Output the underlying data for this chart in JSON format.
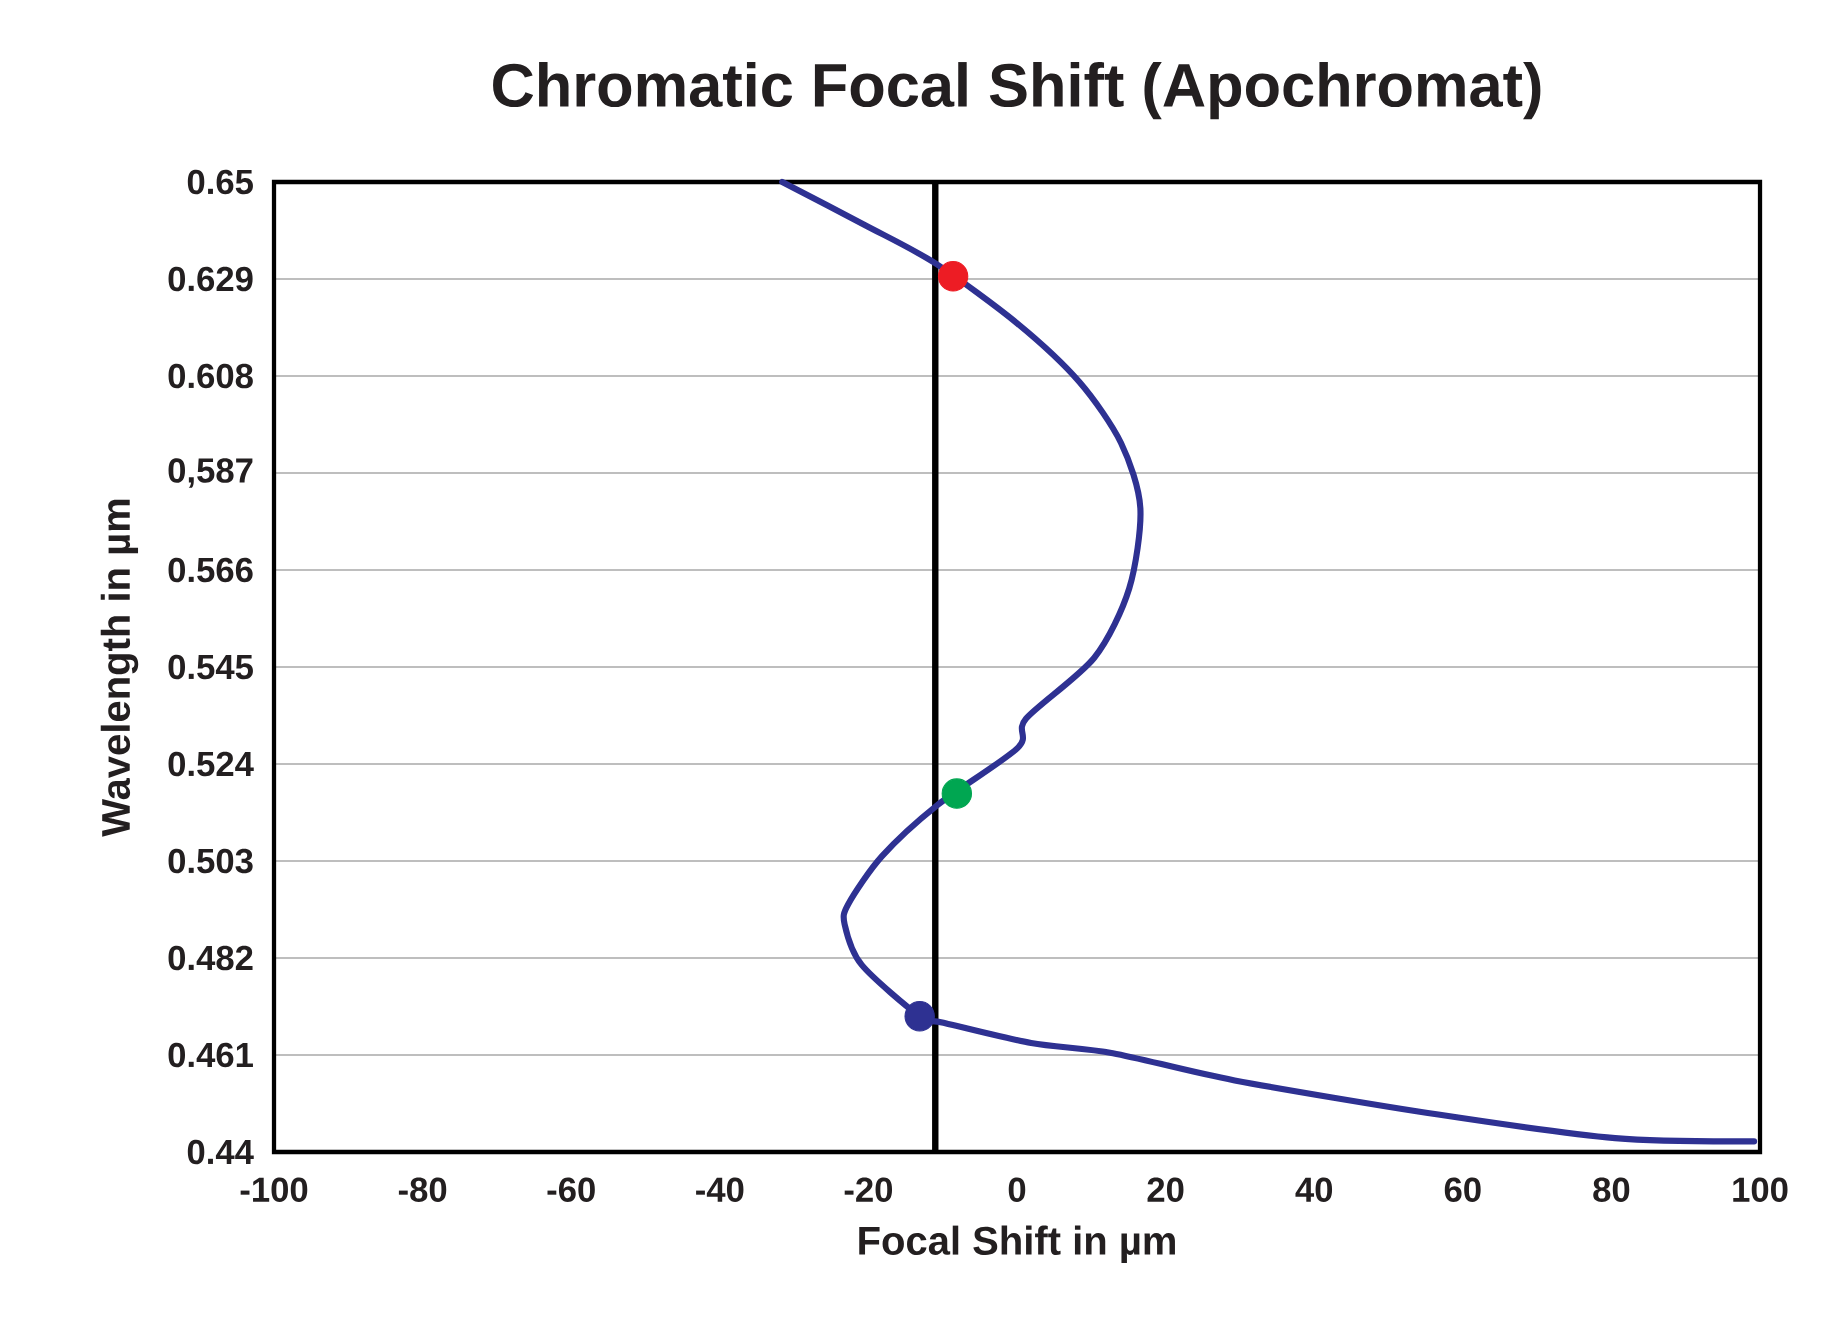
{
  "chart_data": {
    "type": "line",
    "title": "Chromatic Focal Shift (Apochromat)",
    "xlabel": "Focal Shift in µm",
    "ylabel": "Wavelength in µm",
    "series": [
      {
        "color": "#2e3192",
        "x": [
          -31.6,
          -20.5,
          -11,
          0.1,
          8.4,
          14.0,
          16.6,
          15.1,
          10.4,
          1.2,
          0.1,
          -10.8,
          -18.2,
          -22.7,
          -23.2,
          -20.9,
          -13.1,
          -9.9,
          1.9,
          12.9,
          29.3,
          56.7,
          80.5,
          99.2
        ],
        "values": [
          0.65,
          0.6407,
          0.6324,
          0.6193,
          0.6067,
          0.5935,
          0.5794,
          0.562,
          0.547,
          0.5338,
          0.5275,
          0.515,
          0.504,
          0.4937,
          0.4893,
          0.4805,
          0.4694,
          0.468,
          0.4636,
          0.4614,
          0.4555,
          0.4481,
          0.443,
          0.4423
        ]
      },
      {
        "type": "scatter",
        "marker": "circle",
        "colors": [
          "#ed1c24",
          "#00a651",
          "#2e3192"
        ],
        "x": [
          -8.6,
          -8.1,
          -13.1
        ],
        "values": [
          0.6296,
          0.5176,
          0.4694
        ]
      }
    ],
    "xlim": [
      -100,
      100
    ],
    "xticks": [
      -100,
      -80,
      -60,
      -40,
      -20,
      0,
      20,
      40,
      60,
      80,
      100
    ],
    "ylim": [
      0.44,
      0.65
    ],
    "yticks": [
      0.44,
      0.461,
      0.482,
      0.503,
      0.524,
      0.545,
      0.566,
      {
        "value": 0.587,
        "label": "0,587"
      },
      0.608,
      0.629,
      0.65
    ],
    "grid": "y",
    "ref_lines": [
      {
        "axis": "x",
        "value": -11,
        "color": "#000000"
      }
    ]
  }
}
